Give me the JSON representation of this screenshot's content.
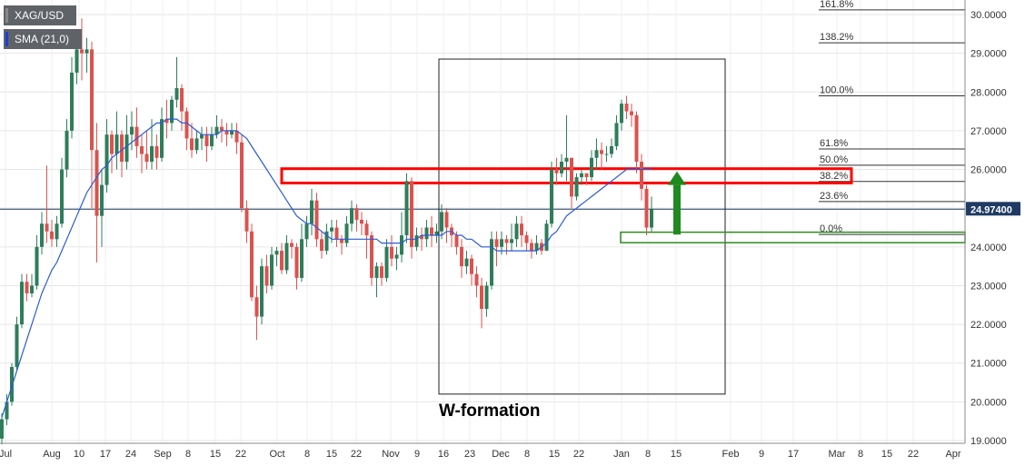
{
  "legend": {
    "symbol": "XAG/USD",
    "indicator": "SMA (21,0)",
    "symbol_color": "#888888",
    "indicator_color": "#1a3fd6"
  },
  "colors": {
    "up": "#2e7d5b",
    "down": "#d9534f",
    "sma": "#2a5bd7",
    "fib_line": "#333333",
    "resistance": "#ff0000",
    "support": "#2e8b1f",
    "arrow": "#1f8a1f",
    "price_tag": "#1f3a63"
  },
  "annotation": {
    "w_formation": "W-formation"
  },
  "current_price": {
    "label": "24.97400",
    "value": 24.974
  },
  "chart_data": {
    "type": "candlestick",
    "symbol": "XAG/USD",
    "ylim": [
      19.0,
      30.25
    ],
    "y_ticks": [
      "19.0000",
      "20.0000",
      "21.0000",
      "22.0000",
      "23.0000",
      "24.0000",
      "25.0000",
      "26.0000",
      "27.0000",
      "28.0000",
      "29.0000",
      "30.0000"
    ],
    "x_ticks": [
      "Jul",
      "Aug",
      "10",
      "17",
      "24",
      "Sep",
      "8",
      "15",
      "22",
      "Oct",
      "8",
      "15",
      "22",
      "Nov",
      "9",
      "16",
      "23",
      "Dec",
      "8",
      "15",
      "22",
      "Jan",
      "8",
      "15",
      "Feb",
      "9",
      "17",
      "Mar",
      "8",
      "15",
      "22",
      "Apr"
    ],
    "fibonacci": [
      {
        "label": "161.8%",
        "price": 30.12
      },
      {
        "label": "138.2%",
        "price": 29.27
      },
      {
        "label": "100.0%",
        "price": 27.9
      },
      {
        "label": "61.8%",
        "price": 26.53
      },
      {
        "label": "50.0%",
        "price": 26.11
      },
      {
        "label": "38.2%",
        "price": 25.69
      },
      {
        "label": "23.6%",
        "price": 25.17
      },
      {
        "label": "0.0%",
        "price": 24.32
      }
    ],
    "resistance_zone": [
      25.65,
      26.02
    ],
    "support_zone": [
      24.11,
      24.38
    ],
    "w_formation_range": {
      "price_top": 28.85,
      "price_bottom": 20.2
    },
    "candles": [
      [
        19.05,
        19.55,
        18.9,
        19.7
      ],
      [
        19.55,
        20.0,
        19.4,
        20.2
      ],
      [
        20.0,
        20.9,
        19.9,
        21.0
      ],
      [
        20.9,
        22.0,
        20.8,
        22.2
      ],
      [
        22.0,
        23.1,
        21.9,
        23.3
      ],
      [
        23.1,
        22.8,
        22.6,
        23.3
      ],
      [
        22.8,
        23.0,
        22.7,
        23.3
      ],
      [
        23.0,
        24.0,
        22.9,
        24.3
      ],
      [
        24.0,
        24.6,
        23.8,
        24.9
      ],
      [
        24.6,
        24.4,
        24.1,
        26.1
      ],
      [
        24.4,
        24.2,
        24.0,
        24.7
      ],
      [
        24.2,
        24.6,
        24.0,
        24.8
      ],
      [
        24.6,
        26.0,
        24.5,
        26.3
      ],
      [
        26.0,
        27.0,
        25.8,
        27.3
      ],
      [
        27.0,
        28.5,
        26.8,
        28.9
      ],
      [
        28.5,
        29.1,
        28.2,
        29.3
      ],
      [
        29.1,
        29.0,
        28.3,
        29.9
      ],
      [
        29.0,
        29.1,
        28.5,
        29.4
      ],
      [
        29.1,
        26.5,
        25.0,
        29.3
      ],
      [
        26.5,
        24.8,
        23.6,
        27.2
      ],
      [
        24.8,
        25.6,
        24.0,
        26.0
      ],
      [
        25.6,
        26.9,
        25.4,
        27.3
      ],
      [
        26.9,
        26.4,
        25.9,
        27.0
      ],
      [
        26.4,
        26.9,
        26.0,
        27.5
      ],
      [
        26.9,
        26.2,
        25.8,
        27.0
      ],
      [
        26.2,
        26.9,
        26.0,
        27.4
      ],
      [
        26.9,
        27.1,
        26.5,
        27.5
      ],
      [
        27.1,
        26.6,
        26.3,
        27.6
      ],
      [
        26.6,
        26.4,
        25.9,
        26.9
      ],
      [
        26.4,
        26.2,
        26.0,
        27.0
      ],
      [
        26.2,
        26.6,
        26.0,
        27.3
      ],
      [
        26.6,
        26.3,
        26.0,
        26.9
      ],
      [
        26.3,
        27.3,
        26.2,
        27.6
      ],
      [
        27.3,
        27.2,
        26.8,
        27.8
      ],
      [
        27.2,
        27.8,
        27.0,
        27.9
      ],
      [
        27.8,
        28.1,
        27.6,
        28.9
      ],
      [
        28.1,
        27.5,
        27.0,
        28.2
      ],
      [
        27.5,
        26.8,
        26.5,
        27.6
      ],
      [
        26.8,
        26.5,
        26.3,
        27.2
      ],
      [
        26.5,
        26.8,
        26.4,
        27.0
      ],
      [
        26.8,
        26.9,
        26.5,
        27.1
      ],
      [
        26.9,
        26.6,
        26.2,
        27.1
      ],
      [
        26.6,
        26.9,
        26.5,
        27.1
      ],
      [
        26.9,
        27.1,
        26.8,
        27.4
      ],
      [
        27.1,
        27.0,
        26.7,
        27.3
      ],
      [
        27.0,
        26.9,
        26.6,
        27.2
      ],
      [
        26.9,
        27.0,
        26.8,
        27.2
      ],
      [
        27.0,
        26.7,
        26.4,
        27.2
      ],
      [
        26.7,
        25.0,
        24.9,
        26.9
      ],
      [
        25.0,
        24.4,
        24.1,
        25.2
      ],
      [
        24.4,
        22.7,
        22.6,
        24.6
      ],
      [
        22.7,
        22.2,
        21.6,
        23.0
      ],
      [
        22.2,
        23.5,
        22.0,
        23.7
      ],
      [
        23.5,
        23.0,
        22.8,
        23.8
      ],
      [
        23.0,
        23.8,
        22.9,
        24.0
      ],
      [
        23.8,
        23.9,
        23.5,
        24.0
      ],
      [
        23.9,
        23.4,
        23.3,
        24.1
      ],
      [
        23.4,
        24.1,
        23.3,
        24.3
      ],
      [
        24.1,
        24.0,
        23.7,
        24.2
      ],
      [
        24.0,
        23.2,
        22.9,
        24.1
      ],
      [
        23.2,
        24.2,
        23.1,
        24.6
      ],
      [
        24.2,
        24.6,
        24.0,
        24.8
      ],
      [
        24.6,
        25.2,
        24.3,
        25.5
      ],
      [
        25.2,
        24.2,
        24.0,
        25.4
      ],
      [
        24.2,
        23.9,
        23.7,
        24.4
      ],
      [
        23.9,
        24.4,
        23.8,
        24.6
      ],
      [
        24.4,
        24.5,
        24.1,
        24.7
      ],
      [
        24.5,
        24.2,
        24.0,
        24.7
      ],
      [
        24.2,
        24.1,
        23.8,
        24.3
      ],
      [
        24.1,
        24.6,
        24.0,
        24.8
      ],
      [
        24.6,
        25.0,
        24.4,
        25.2
      ],
      [
        25.0,
        24.7,
        24.4,
        25.1
      ],
      [
        24.7,
        24.6,
        24.3,
        24.9
      ],
      [
        24.6,
        24.3,
        23.7,
        24.7
      ],
      [
        24.3,
        23.2,
        23.0,
        24.4
      ],
      [
        23.2,
        23.5,
        22.7,
        23.6
      ],
      [
        23.5,
        23.2,
        23.0,
        23.6
      ],
      [
        23.2,
        24.0,
        23.1,
        24.2
      ],
      [
        24.0,
        23.7,
        23.5,
        24.3
      ],
      [
        23.7,
        23.8,
        23.4,
        24.0
      ],
      [
        23.8,
        24.3,
        23.6,
        24.9
      ],
      [
        24.3,
        25.7,
        24.1,
        25.9
      ],
      [
        25.7,
        24.0,
        23.7,
        25.8
      ],
      [
        24.0,
        24.3,
        23.9,
        24.5
      ],
      [
        24.3,
        24.2,
        23.9,
        24.5
      ],
      [
        24.2,
        24.5,
        24.0,
        24.7
      ],
      [
        24.5,
        24.3,
        24.0,
        24.8
      ],
      [
        24.3,
        24.4,
        24.1,
        24.6
      ],
      [
        24.4,
        24.9,
        24.2,
        25.1
      ],
      [
        24.9,
        24.5,
        24.1,
        25.0
      ],
      [
        24.5,
        24.3,
        24.0,
        24.6
      ],
      [
        24.3,
        24.0,
        23.8,
        24.4
      ],
      [
        24.0,
        23.5,
        23.2,
        24.2
      ],
      [
        23.5,
        23.7,
        23.3,
        23.9
      ],
      [
        23.7,
        23.3,
        23.0,
        23.8
      ],
      [
        23.3,
        23.0,
        22.7,
        23.5
      ],
      [
        23.0,
        22.4,
        21.9,
        23.2
      ],
      [
        22.4,
        23.0,
        22.2,
        23.1
      ],
      [
        23.0,
        24.2,
        22.9,
        24.4
      ],
      [
        24.2,
        24.0,
        23.5,
        24.4
      ],
      [
        24.0,
        24.2,
        23.8,
        24.4
      ],
      [
        24.2,
        24.1,
        23.8,
        24.3
      ],
      [
        24.1,
        24.2,
        23.9,
        24.6
      ],
      [
        24.2,
        24.6,
        24.0,
        24.8
      ],
      [
        24.6,
        24.3,
        24.0,
        24.8
      ],
      [
        24.3,
        24.1,
        23.9,
        24.4
      ],
      [
        24.1,
        23.9,
        23.7,
        24.2
      ],
      [
        23.9,
        24.1,
        23.8,
        24.3
      ],
      [
        24.1,
        23.9,
        23.8,
        24.2
      ],
      [
        23.9,
        24.6,
        23.9,
        24.7
      ],
      [
        24.6,
        26.0,
        24.5,
        26.2
      ],
      [
        26.0,
        25.9,
        25.6,
        26.3
      ],
      [
        25.9,
        26.2,
        25.8,
        26.4
      ],
      [
        26.2,
        26.3,
        25.7,
        27.4
      ],
      [
        26.3,
        25.3,
        25.0,
        26.3
      ],
      [
        25.3,
        25.8,
        25.2,
        25.9
      ],
      [
        25.8,
        25.9,
        25.6,
        26.0
      ],
      [
        25.9,
        25.8,
        25.6,
        25.9
      ],
      [
        25.8,
        26.3,
        25.7,
        26.5
      ],
      [
        26.3,
        26.5,
        26.0,
        26.8
      ],
      [
        26.5,
        26.4,
        26.0,
        26.7
      ],
      [
        26.4,
        26.4,
        26.2,
        26.6
      ],
      [
        26.4,
        26.6,
        26.3,
        26.8
      ],
      [
        26.6,
        27.2,
        26.5,
        27.4
      ],
      [
        27.2,
        27.7,
        27.0,
        27.8
      ],
      [
        27.7,
        27.5,
        27.3,
        27.9
      ],
      [
        27.5,
        27.4,
        27.1,
        27.7
      ],
      [
        27.4,
        26.2,
        25.9,
        27.5
      ],
      [
        26.2,
        25.5,
        25.2,
        26.4
      ],
      [
        25.5,
        24.5,
        24.3,
        25.6
      ],
      [
        24.5,
        24.97,
        24.4,
        25.3
      ]
    ],
    "sma_points": [
      [
        19.6
      ],
      [
        20.0
      ],
      [
        20.4
      ],
      [
        20.8
      ],
      [
        21.2
      ],
      [
        21.6
      ],
      [
        22.0
      ],
      [
        22.4
      ],
      [
        22.8
      ],
      [
        23.1
      ],
      [
        23.4
      ],
      [
        23.6
      ],
      [
        23.9
      ],
      [
        24.2
      ],
      [
        24.5
      ],
      [
        24.8
      ],
      [
        25.1
      ],
      [
        25.4
      ],
      [
        25.6
      ],
      [
        25.8
      ],
      [
        26.0
      ],
      [
        26.1
      ],
      [
        26.3
      ],
      [
        26.4
      ],
      [
        26.5
      ],
      [
        26.6
      ],
      [
        26.7
      ],
      [
        26.8
      ],
      [
        26.9
      ],
      [
        27.0
      ],
      [
        27.1
      ],
      [
        27.2
      ],
      [
        27.2
      ],
      [
        27.3
      ],
      [
        27.3
      ],
      [
        27.3
      ],
      [
        27.2
      ],
      [
        27.2
      ],
      [
        27.1
      ],
      [
        27.0
      ],
      [
        26.9
      ],
      [
        26.9
      ],
      [
        26.9
      ],
      [
        26.9
      ],
      [
        27.0
      ],
      [
        27.0
      ],
      [
        27.0
      ],
      [
        27.0
      ],
      [
        26.9
      ],
      [
        26.8
      ],
      [
        26.6
      ],
      [
        26.4
      ],
      [
        26.2
      ],
      [
        26.0
      ],
      [
        25.8
      ],
      [
        25.6
      ],
      [
        25.4
      ],
      [
        25.2
      ],
      [
        25.0
      ],
      [
        24.8
      ],
      [
        24.7
      ],
      [
        24.6
      ],
      [
        24.6
      ],
      [
        24.5
      ],
      [
        24.4
      ],
      [
        24.3
      ],
      [
        24.2
      ],
      [
        24.2
      ],
      [
        24.2
      ],
      [
        24.2
      ],
      [
        24.2
      ],
      [
        24.2
      ],
      [
        24.2
      ],
      [
        24.2
      ],
      [
        24.2
      ],
      [
        24.2
      ],
      [
        24.1
      ],
      [
        24.1
      ],
      [
        24.1
      ],
      [
        24.1
      ],
      [
        24.1
      ],
      [
        24.2
      ],
      [
        24.2
      ],
      [
        24.2
      ],
      [
        24.3
      ],
      [
        24.3
      ],
      [
        24.3
      ],
      [
        24.3
      ],
      [
        24.3
      ],
      [
        24.4
      ],
      [
        24.4
      ],
      [
        24.3
      ],
      [
        24.3
      ],
      [
        24.2
      ],
      [
        24.2
      ],
      [
        24.1
      ],
      [
        24.0
      ],
      [
        24.0
      ],
      [
        24.0
      ],
      [
        23.9
      ],
      [
        23.9
      ],
      [
        23.9
      ],
      [
        23.9
      ],
      [
        23.9
      ],
      [
        23.9
      ],
      [
        23.9
      ],
      [
        23.9
      ],
      [
        23.9
      ],
      [
        24.0
      ],
      [
        24.1
      ],
      [
        24.3
      ],
      [
        24.4
      ],
      [
        24.6
      ],
      [
        24.8
      ],
      [
        24.9
      ],
      [
        25.0
      ],
      [
        25.1
      ],
      [
        25.2
      ],
      [
        25.3
      ],
      [
        25.4
      ],
      [
        25.5
      ],
      [
        25.6
      ],
      [
        25.7
      ],
      [
        25.8
      ],
      [
        25.9
      ],
      [
        26.0
      ],
      [
        26.0
      ],
      [
        26.0
      ],
      [
        26.0
      ],
      [
        26.0
      ],
      [
        26.0
      ]
    ]
  }
}
